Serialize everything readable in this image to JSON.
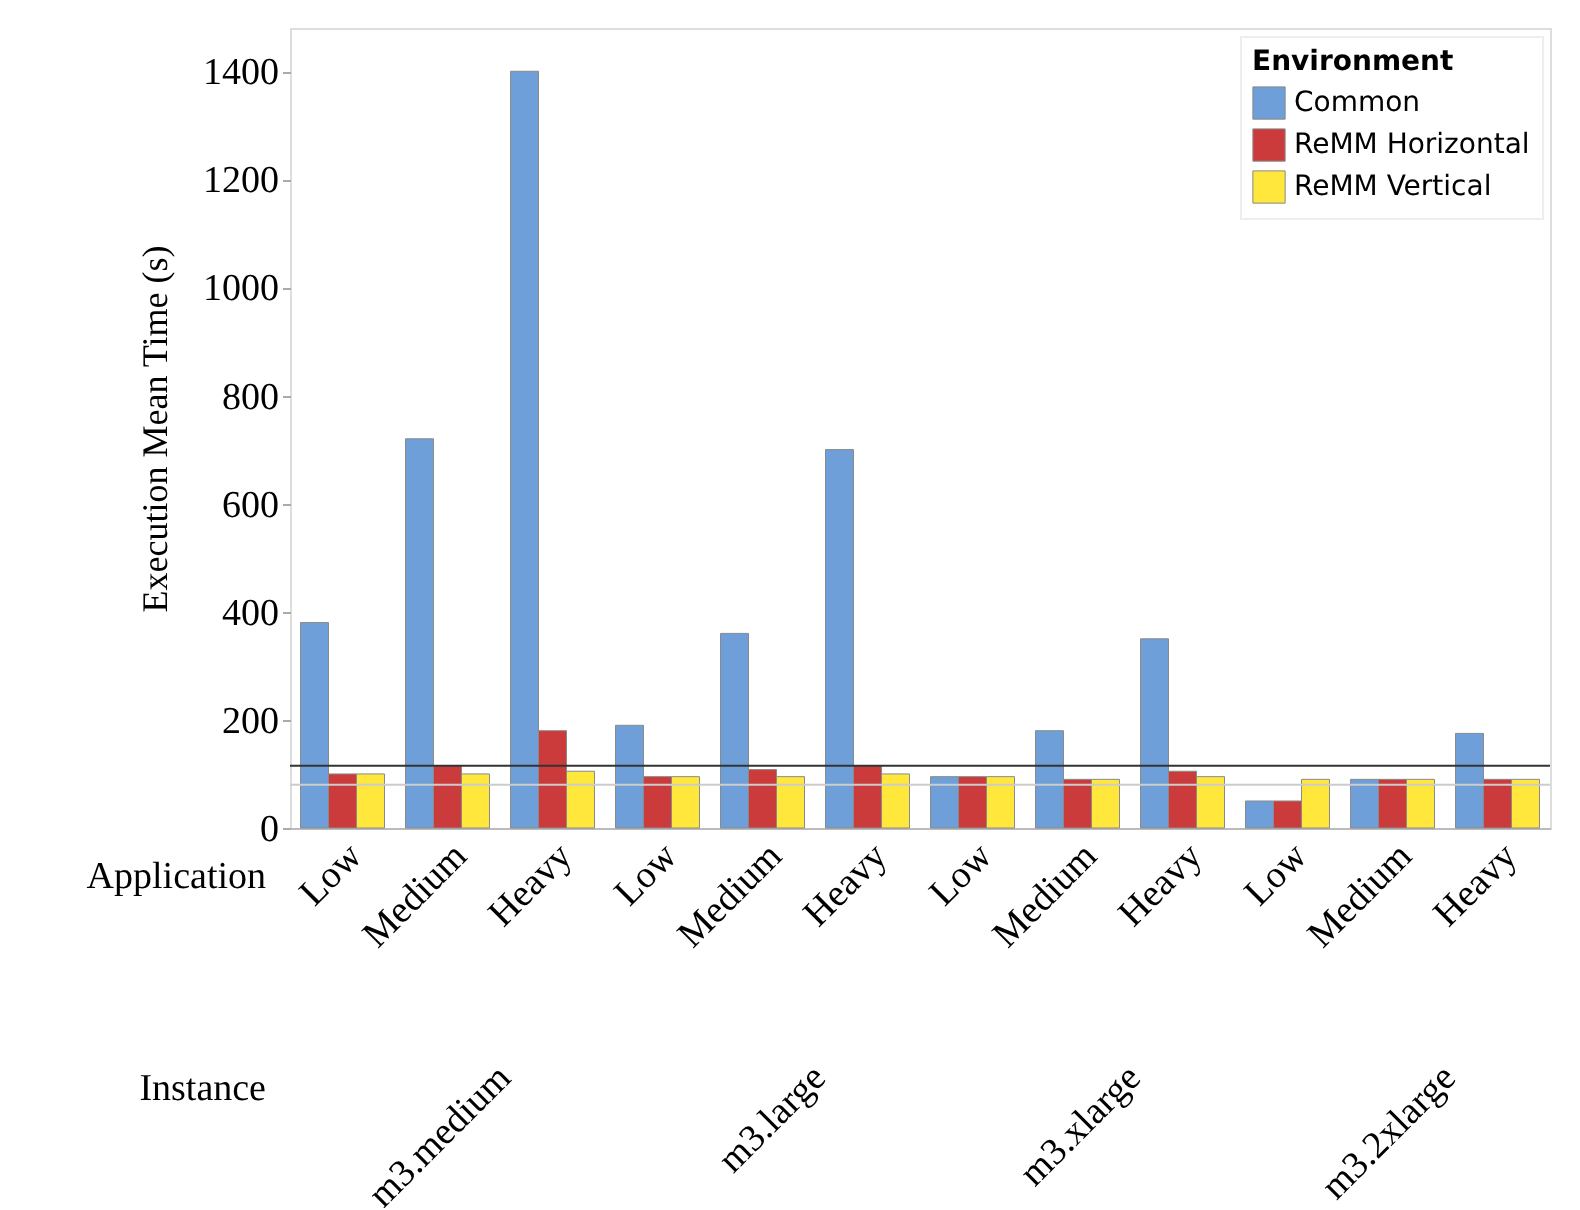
{
  "chart_data": {
    "type": "bar",
    "ylabel": "Execution Mean Time (s)",
    "legend_title": "Environment",
    "categories": [
      "Low",
      "Medium",
      "Heavy",
      "Low",
      "Medium",
      "Heavy",
      "Low",
      "Medium",
      "Heavy",
      "Low",
      "Medium",
      "Heavy"
    ],
    "series": [
      {
        "name": "Common",
        "color": "#6f9fd8",
        "values": [
          380,
          720,
          1400,
          190,
          360,
          700,
          95,
          180,
          350,
          50,
          90,
          175
        ]
      },
      {
        "name": "ReMM Horizontal",
        "color": "#cc3b3b",
        "values": [
          100,
          115,
          180,
          95,
          108,
          115,
          95,
          90,
          105,
          50,
          90,
          90
        ]
      },
      {
        "name": "ReMM Vertical",
        "color": "#ffe83b",
        "values": [
          100,
          100,
          105,
          95,
          95,
          100,
          95,
          90,
          95,
          90,
          90,
          90
        ]
      }
    ],
    "ylim": [
      0,
      1480
    ],
    "yticks": [
      0,
      200,
      400,
      600,
      800,
      1000,
      1200,
      1400
    ],
    "ref_lines": [
      {
        "axis": "y",
        "value": 115,
        "color": "#333333"
      },
      {
        "axis": "y",
        "value": 80,
        "color": "#cccccc"
      }
    ],
    "annotations": [
      "Application",
      "Instance",
      "m3.medium",
      "m3.large",
      "m3.xlarge",
      "m3.2xlarge"
    ],
    "grid": false,
    "legend": "top right"
  }
}
